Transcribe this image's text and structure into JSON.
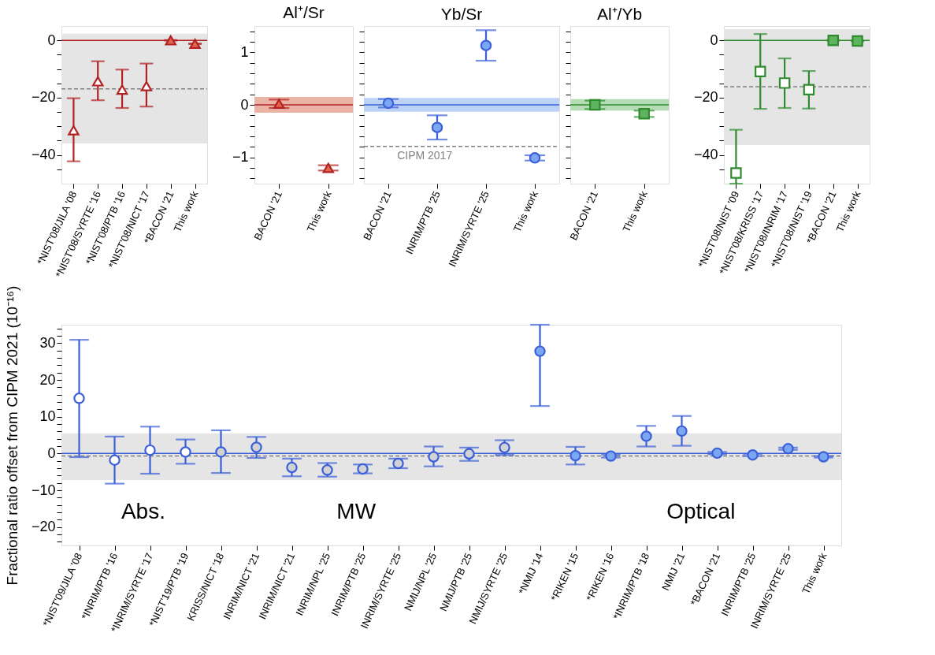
{
  "chart_data": [
    {
      "type": "scatter",
      "marker": "triangle",
      "categories": [
        "*NIST'08/JILA '08",
        "*NIST'08/SYRTE '16",
        "*NIST'08/PTB '16",
        "*NIST'08/NICT '17",
        "*BACON '21",
        "This work"
      ],
      "series": [
        {
          "color": "#b22222",
          "colors": [
            "#ffffff",
            "#ffffff",
            "#ffffff",
            "#ffffff",
            "#e0664f",
            "#e0664f"
          ],
          "values": [
            -31.4,
            -14.3,
            -17.2,
            -16.0,
            0.0,
            -1.2
          ],
          "errors": [
            [
              -42.2,
              -20.2
            ],
            [
              -20.9,
              -7.3
            ],
            [
              -23.6,
              -10.2
            ],
            [
              -23.1,
              -8.1
            ],
            0.1,
            0.1
          ]
        }
      ],
      "ylim": [
        -50,
        5
      ],
      "yticks": [
        0,
        {
          "value": -5,
          "label": null
        },
        {
          "value": -10,
          "label": null
        },
        {
          "value": -15,
          "label": null
        },
        {
          "value": -20,
          "label": "−20"
        },
        {
          "value": -25,
          "label": null
        },
        {
          "value": -30,
          "label": null
        },
        {
          "value": -35,
          "label": null
        },
        {
          "value": -40,
          "label": "−40"
        },
        {
          "value": -45,
          "label": null
        }
      ],
      "ref_lines": [
        {
          "axis": "y",
          "value": 0,
          "color": "#b22222",
          "line_style": "solid"
        },
        {
          "axis": "y",
          "value": -16.9,
          "color": "#808080",
          "line_style": "dashed"
        }
      ],
      "bands": [
        {
          "axis": "y",
          "from": -36,
          "to": 2.3,
          "color": "#e5e5e5"
        }
      ]
    },
    {
      "type": "scatter",
      "marker": "triangle",
      "title": "Al⁺/Sr",
      "categories": [
        "BACON '21",
        "This work"
      ],
      "series": [
        {
          "color": "#b22222",
          "colors": [
            "#e0664f",
            "#e0664f"
          ],
          "values": [
            0.02,
            -1.2
          ],
          "errors": [
            0.08,
            0.05
          ]
        }
      ],
      "ylim": [
        -1.5,
        1.5
      ],
      "yticks": [
        {
          "value": -1.4,
          "label": null
        },
        {
          "value": -1.2,
          "label": null
        },
        {
          "value": -1,
          "label": "−1"
        },
        {
          "value": -0.8,
          "label": null
        },
        {
          "value": -0.6,
          "label": null
        },
        {
          "value": -0.4,
          "label": null
        },
        {
          "value": -0.2,
          "label": null
        },
        0,
        {
          "value": 0.2,
          "label": null
        },
        {
          "value": 0.4,
          "label": null
        },
        {
          "value": 0.6,
          "label": null
        },
        {
          "value": 0.8,
          "label": null
        },
        1,
        {
          "value": 1.2,
          "label": null
        },
        {
          "value": 1.4,
          "label": null
        }
      ],
      "ref_lines": [
        {
          "axis": "y",
          "value": 0,
          "color": "#b22222",
          "line_style": "solid"
        }
      ],
      "bands": [
        {
          "axis": "y",
          "from": -0.15,
          "to": 0.15,
          "color": "#ebb3a6"
        }
      ]
    },
    {
      "type": "scatter",
      "marker": "circle",
      "title": "Yb/Sr",
      "categories": [
        "BACON '21",
        "INRIM/PTB '25",
        "INRIM/SYRTE '25",
        "This work"
      ],
      "tick_labels": "x",
      "series": [
        {
          "color": "#3a5fd9",
          "colors": [
            "#7ba7f2",
            "#7ba7f2",
            "#7ba7f2",
            "#7ba7f2"
          ],
          "values": [
            0.03,
            -0.43,
            1.13,
            -1.01
          ],
          "errors": [
            0.08,
            [
              -0.66,
              -0.2
            ],
            [
              0.84,
              1.42
            ],
            0.05
          ]
        }
      ],
      "ylim": [
        -1.5,
        1.5
      ],
      "yticks": [
        {
          "value": -1.4,
          "label": null
        },
        {
          "value": -1.2,
          "label": null
        },
        {
          "value": -1,
          "label": null
        },
        {
          "value": -0.8,
          "label": null
        },
        {
          "value": -0.6,
          "label": null
        },
        {
          "value": -0.4,
          "label": null
        },
        {
          "value": -0.2,
          "label": null
        },
        {
          "value": 0,
          "label": null
        },
        {
          "value": 0.2,
          "label": null
        },
        {
          "value": 0.4,
          "label": null
        },
        {
          "value": 0.6,
          "label": null
        },
        {
          "value": 0.8,
          "label": null
        },
        {
          "value": 1,
          "label": null
        },
        {
          "value": 1.2,
          "label": null
        },
        {
          "value": 1.4,
          "label": null
        }
      ],
      "ref_lines": [
        {
          "axis": "y",
          "value": 0,
          "color": "#3a5fd9",
          "line_style": "solid"
        },
        {
          "axis": "y",
          "value": -0.79,
          "label": "CIPM 2017",
          "color": "#808080",
          "line_style": "dashed"
        }
      ],
      "bands": [
        {
          "axis": "y",
          "from": -0.13,
          "to": 0.13,
          "color": "#bcd3f7"
        }
      ]
    },
    {
      "type": "scatter",
      "marker": "square",
      "title": "Al⁺/Yb",
      "categories": [
        "BACON '21",
        "This work"
      ],
      "tick_labels": "x",
      "series": [
        {
          "color": "#2e8b2e",
          "colors": [
            "#5fb35f",
            "#5fb35f"
          ],
          "values": [
            0.0,
            -0.17
          ],
          "errors": [
            0.08,
            0.06
          ]
        }
      ],
      "ylim": [
        -1.5,
        1.5
      ],
      "yticks": [
        {
          "value": -1.4,
          "label": null
        },
        {
          "value": -1.2,
          "label": null
        },
        {
          "value": -1,
          "label": null
        },
        {
          "value": -0.8,
          "label": null
        },
        {
          "value": -0.6,
          "label": null
        },
        {
          "value": -0.4,
          "label": null
        },
        {
          "value": -0.2,
          "label": null
        },
        {
          "value": 0,
          "label": null
        },
        {
          "value": 0.2,
          "label": null
        },
        {
          "value": 0.4,
          "label": null
        },
        {
          "value": 0.6,
          "label": null
        },
        {
          "value": 0.8,
          "label": null
        },
        {
          "value": 1,
          "label": null
        },
        {
          "value": 1.2,
          "label": null
        },
        {
          "value": 1.4,
          "label": null
        }
      ],
      "ref_lines": [
        {
          "axis": "y",
          "value": 0,
          "color": "#2e8b2e",
          "line_style": "solid"
        }
      ],
      "bands": [
        {
          "axis": "y",
          "from": -0.11,
          "to": 0.11,
          "color": "#b5dcb5"
        }
      ]
    },
    {
      "type": "scatter",
      "marker": "square",
      "categories": [
        "*NIST'08/NIST '09",
        "*NIST'08/KRISS '17",
        "*NIST'08/INRIM '17",
        "*NIST'08/NIST '19",
        "*BACON '21",
        "This work"
      ],
      "series": [
        {
          "color": "#2e8b2e",
          "colors": [
            "#ffffff",
            "#ffffff",
            "#ffffff",
            "#ffffff",
            "#5fb35f",
            "#5fb35f"
          ],
          "values": [
            -46.3,
            -10.9,
            -14.9,
            -17.2,
            0.0,
            -0.2
          ],
          "errors": [
            [
              -50,
              -31.2
            ],
            [
              -23.9,
              2.2
            ],
            [
              -23.6,
              -6.3
            ],
            [
              -23.8,
              -10.7
            ],
            0.1,
            0.1
          ]
        }
      ],
      "ylim": [
        -50,
        5
      ],
      "yticks": [
        0,
        {
          "value": -5,
          "label": null
        },
        {
          "value": -10,
          "label": null
        },
        {
          "value": -15,
          "label": null
        },
        {
          "value": -20,
          "label": "−20"
        },
        {
          "value": -25,
          "label": null
        },
        {
          "value": -30,
          "label": null
        },
        {
          "value": -35,
          "label": null
        },
        {
          "value": -40,
          "label": "−40"
        },
        {
          "value": -45,
          "label": null
        }
      ],
      "ref_lines": [
        {
          "axis": "y",
          "value": 0,
          "color": "#2e8b2e",
          "line_style": "solid"
        },
        {
          "axis": "y",
          "value": -16.2,
          "color": "#808080",
          "line_style": "dashed"
        }
      ],
      "bands": [
        {
          "axis": "y",
          "from": -36.5,
          "to": 3.9,
          "color": "#e5e5e5"
        }
      ]
    },
    {
      "type": "scatter",
      "marker": "circle",
      "ylabel": "Fractional ratio offset from CIPM 2021 (10⁻¹⁶)",
      "categories": [
        "*NIST'09/JILA '08",
        "*INRIM/PTB '16",
        "*INRIM/SYRTE '17",
        "*NIST'19/PTB '19",
        "KRISS/NICT '18",
        "INRIM/NICT '21",
        "INRIM/NICT '21",
        "INRIM/NPL '25",
        "INRIM/PTB '25",
        "INRIM/SYRTE '25",
        "NMIJ/NPL '25",
        "NMIJ/PTB '25",
        "NMIJ/SYRTE '25",
        "*NMIJ '14",
        "*RIKEN '15",
        "*RIKEN '16",
        "*INRIM/PTB '18",
        "NMIJ '21",
        "*BACON '21",
        "INRIM/PTB '25",
        "INRIM/SYRTE '25",
        "This work"
      ],
      "series": [
        {
          "color": "#3a5fd9",
          "colors": [
            "#ffffff",
            "#ffffff",
            "#ffffff",
            "#ffffff",
            "#d3d3d3",
            "#d3d3d3",
            "#d3d3d3",
            "#d3d3d3",
            "#d3d3d3",
            "#d3d3d3",
            "#d3d3d3",
            "#d3d3d3",
            "#d3d3d3",
            "#7ba7f2",
            "#7ba7f2",
            "#7ba7f2",
            "#7ba7f2",
            "#7ba7f2",
            "#7ba7f2",
            "#7ba7f2",
            "#7ba7f2",
            "#7ba7f2"
          ],
          "values": [
            15.0,
            -1.8,
            0.9,
            0.4,
            0.4,
            1.7,
            -3.8,
            -4.5,
            -4.2,
            -2.7,
            -0.9,
            -0.1,
            1.6,
            27.8,
            -0.6,
            -0.7,
            4.7,
            6.1,
            0.1,
            -0.4,
            1.3,
            -0.9
          ],
          "errors": [
            [
              -1.0,
              30.9
            ],
            [
              -8.2,
              4.6
            ],
            [
              -5.5,
              7.3
            ],
            [
              -2.8,
              3.8
            ],
            [
              -5.3,
              6.3
            ],
            [
              -1.2,
              4.5
            ],
            [
              -6.2,
              -1.4
            ],
            [
              -6.3,
              -2.6
            ],
            [
              -5.4,
              -3.0
            ],
            [
              -4.0,
              -1.4
            ],
            [
              -3.5,
              1.9
            ],
            [
              -2.0,
              1.6
            ],
            [
              -0.4,
              3.6
            ],
            [
              12.9,
              35
            ],
            [
              -3.0,
              1.8
            ],
            0.4,
            [
              1.9,
              7.5
            ],
            [
              2.1,
              10.2
            ],
            0.3,
            0.3,
            0.3,
            0.2
          ]
        }
      ],
      "ylim": [
        -25,
        35
      ],
      "yticks": [
        {
          "value": -24,
          "label": null
        },
        {
          "value": -22,
          "label": null
        },
        {
          "value": -20,
          "label": "−20"
        },
        {
          "value": -18,
          "label": null
        },
        {
          "value": -16,
          "label": null
        },
        {
          "value": -14,
          "label": null
        },
        {
          "value": -12,
          "label": null
        },
        {
          "value": -10,
          "label": "−10"
        },
        {
          "value": -8,
          "label": null
        },
        {
          "value": -6,
          "label": null
        },
        {
          "value": -4,
          "label": null
        },
        {
          "value": -2,
          "label": null
        },
        0,
        {
          "value": 2,
          "label": null
        },
        {
          "value": 4,
          "label": null
        },
        {
          "value": 6,
          "label": null
        },
        {
          "value": 8,
          "label": null
        },
        10,
        {
          "value": 12,
          "label": null
        },
        {
          "value": 14,
          "label": null
        },
        {
          "value": 16,
          "label": null
        },
        {
          "value": 18,
          "label": null
        },
        20,
        {
          "value": 22,
          "label": null
        },
        {
          "value": 24,
          "label": null
        },
        {
          "value": 26,
          "label": null
        },
        {
          "value": 28,
          "label": null
        },
        30,
        {
          "value": 32,
          "label": null
        },
        {
          "value": 34,
          "label": null
        }
      ],
      "ref_lines": [
        {
          "axis": "y",
          "value": 0,
          "color": "#3a5fd9",
          "line_style": "solid"
        },
        {
          "axis": "y",
          "value": -0.7,
          "color": "#808080",
          "line_style": "dashed"
        }
      ],
      "bands": [
        {
          "axis": "y",
          "from": -7.2,
          "to": 5.5,
          "color": "#e5e5e5"
        }
      ],
      "annotations": [
        "Abs.",
        "MW",
        "Optical"
      ]
    }
  ]
}
